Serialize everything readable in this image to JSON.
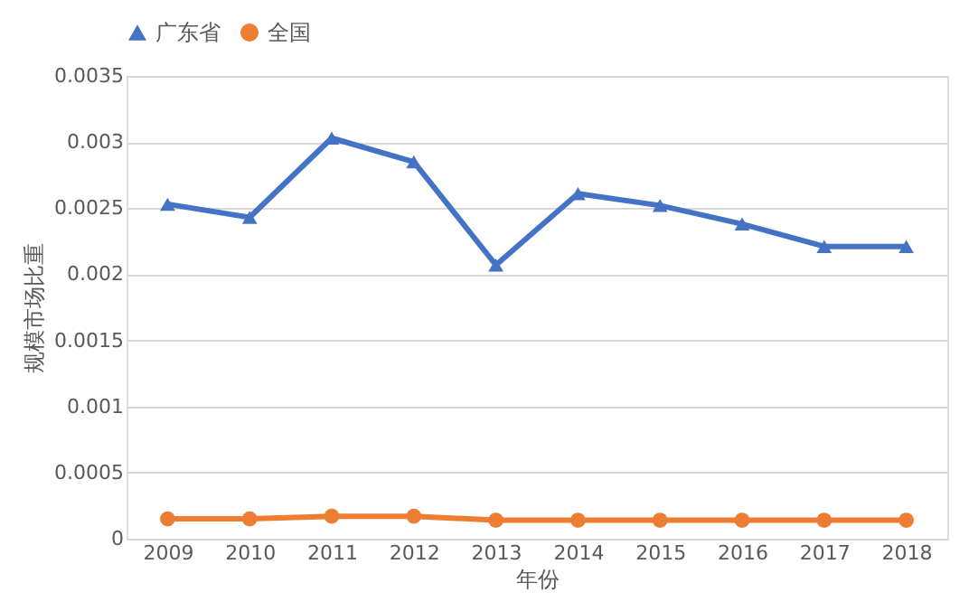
{
  "chart_data": {
    "type": "line",
    "categories": [
      "2009",
      "2010",
      "2011",
      "2012",
      "2013",
      "2014",
      "2015",
      "2016",
      "2017",
      "2018"
    ],
    "series": [
      {
        "name": "广东省",
        "color": "#4472c4",
        "marker": "triangle",
        "values": [
          0.00253,
          0.00243,
          0.00303,
          0.00285,
          0.00207,
          0.00261,
          0.00252,
          0.00238,
          0.00221,
          0.00221
        ]
      },
      {
        "name": "全国",
        "color": "#ed7d31",
        "marker": "circle",
        "values": [
          0.00015,
          0.00015,
          0.00017,
          0.00017,
          0.00014,
          0.00014,
          0.00014,
          0.00014,
          0.00014,
          0.00014
        ]
      }
    ],
    "xlabel": "年份",
    "ylabel": "规模市场比重",
    "ylim": [
      0,
      0.0035
    ],
    "yticks": [
      0,
      0.0005,
      0.001,
      0.0015,
      0.002,
      0.0025,
      0.003,
      0.0035
    ],
    "grid": "y",
    "legend": "top",
    "line_style": "solid"
  }
}
